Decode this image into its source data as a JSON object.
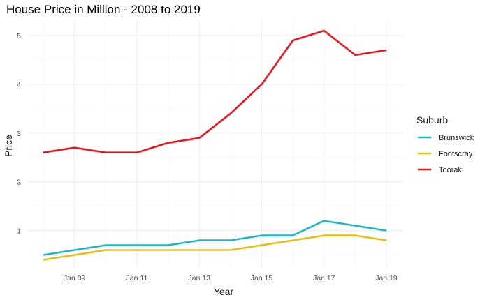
{
  "chart_data": {
    "type": "line",
    "title": "House Price in Million - 2008 to 2019",
    "xlabel": "Year",
    "ylabel": "Price",
    "x": [
      "2008",
      "2009",
      "2010",
      "2011",
      "2012",
      "2013",
      "2014",
      "2015",
      "2016",
      "2017",
      "2018",
      "2019"
    ],
    "x_tick_labels": [
      "Jan 09",
      "Jan 11",
      "Jan 13",
      "Jan 15",
      "Jan 17",
      "Jan 19"
    ],
    "y_ticks": [
      1,
      2,
      3,
      4,
      5
    ],
    "ylim": [
      0.25,
      5.3
    ],
    "grid": true,
    "legend": {
      "title": "Suburb",
      "position": "right"
    },
    "series": [
      {
        "name": "Brunswick",
        "color": "#1ab8c8",
        "values": [
          0.5,
          0.6,
          0.7,
          0.7,
          0.7,
          0.8,
          0.8,
          0.9,
          0.9,
          1.2,
          1.1,
          1.0
        ]
      },
      {
        "name": "Footscray",
        "color": "#ebbd14",
        "values": [
          0.4,
          0.5,
          0.6,
          0.6,
          0.6,
          0.6,
          0.6,
          0.7,
          0.8,
          0.9,
          0.9,
          0.8
        ]
      },
      {
        "name": "Toorak",
        "color": "#f0141e",
        "values": [
          2.6,
          2.7,
          2.6,
          2.6,
          2.8,
          2.9,
          3.4,
          4.0,
          4.9,
          5.1,
          4.6,
          4.7
        ]
      }
    ]
  }
}
